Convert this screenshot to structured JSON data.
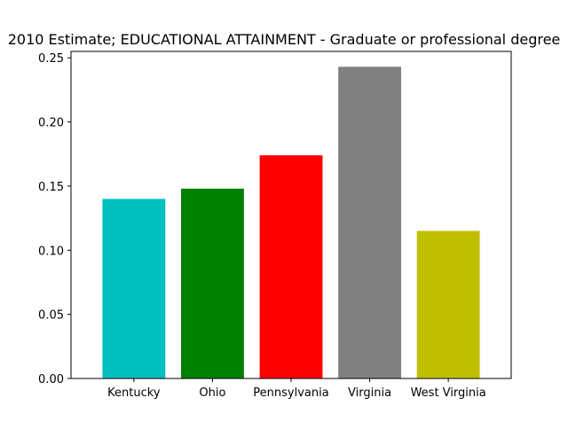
{
  "chart_data": {
    "type": "bar",
    "title": "2010 Estimate; EDUCATIONAL ATTAINMENT - Graduate or professional degree",
    "xlabel": "",
    "ylabel": "",
    "categories": [
      "Kentucky",
      "Ohio",
      "Pennsylvania",
      "Virginia",
      "West Virginia"
    ],
    "values": [
      0.14,
      0.148,
      0.174,
      0.243,
      0.115
    ],
    "colors": [
      "#00bfbf",
      "#008000",
      "#ff0000",
      "#808080",
      "#bfbf00"
    ],
    "ylim": [
      0,
      0.255
    ],
    "yticks": [
      0.0,
      0.05,
      0.1,
      0.15,
      0.2,
      0.25
    ],
    "ytick_labels": [
      "0.00",
      "0.05",
      "0.10",
      "0.15",
      "0.20",
      "0.25"
    ],
    "grid": false,
    "legend": "none"
  }
}
